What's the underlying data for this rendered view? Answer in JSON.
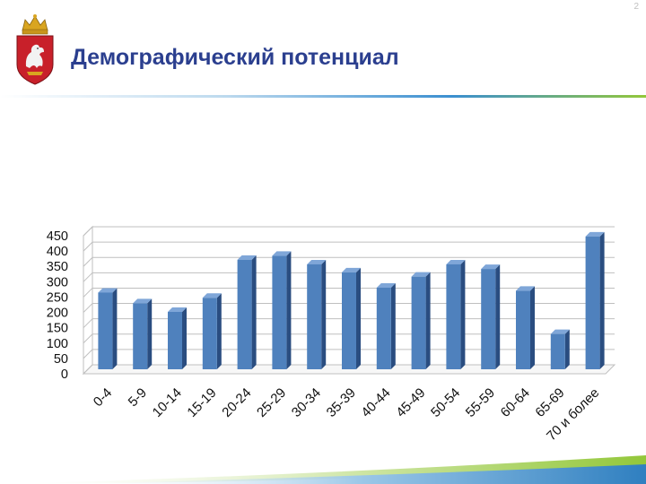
{
  "header": {
    "title": "Демографический потенциал",
    "page_number": "2"
  },
  "colors": {
    "title": "#2b3f8f",
    "bar_front": "#4f81bd",
    "bar_side": "#2a4d80",
    "bar_top": "#7fa6d8",
    "accent_green": "#93c73a",
    "accent_blue": "#2f7fc0"
  },
  "icons": {
    "logo": "sverdlovsk-coat-of-arms-icon"
  },
  "chart_data": {
    "type": "bar",
    "categories": [
      "0-4",
      "5-9",
      "10-14",
      "15-19",
      "20-24",
      "25-29",
      "30-34",
      "35-39",
      "40-44",
      "45-49",
      "50-54",
      "55-59",
      "60-64",
      "65-69",
      "70 и более"
    ],
    "values": [
      250,
      215,
      187,
      233,
      357,
      370,
      342,
      316,
      266,
      302,
      342,
      327,
      256,
      115,
      433
    ],
    "title": "",
    "xlabel": "",
    "ylabel": "",
    "ylim": [
      0,
      450
    ],
    "yticks": [
      0,
      50,
      100,
      150,
      200,
      250,
      300,
      350,
      400,
      450
    ],
    "grid": true,
    "legend": "none",
    "style": "3d-column"
  }
}
